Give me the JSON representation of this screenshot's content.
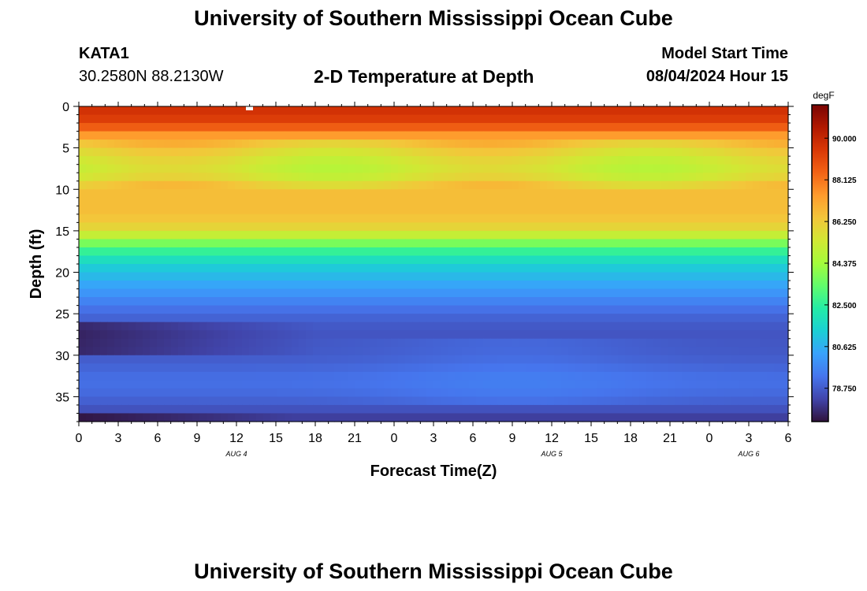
{
  "page": {
    "title": "University of Southern Mississippi Ocean Cube",
    "footer_title": "University of Southern Mississippi Ocean Cube",
    "station_id": "KATA1",
    "coordinates": "30.2580N  88.2130W",
    "plot_title": "2-D Temperature at Depth",
    "model_start_label": "Model Start Time",
    "model_start_value": "08/04/2024 Hour 15"
  },
  "chart_data": {
    "type": "heatmap",
    "title": "2-D Temperature at Depth",
    "xlabel": "Forecast Time(Z)",
    "ylabel": "Depth (ft)",
    "colorbar_label": "degF",
    "ylim": [
      0,
      38
    ],
    "y_ticks": [
      0,
      5,
      10,
      15,
      20,
      25,
      30,
      35
    ],
    "x_tick_labels": [
      "0",
      "3",
      "6",
      "9",
      "12",
      "15",
      "18",
      "21",
      "0",
      "3",
      "6",
      "9",
      "12",
      "15",
      "18",
      "21",
      "0",
      "3",
      "6"
    ],
    "date_labels": [
      {
        "label": "AUG 4",
        "at_tick": 4
      },
      {
        "label": "AUG 5",
        "at_tick": 12
      },
      {
        "label": "AUG 6",
        "at_tick": 17
      }
    ],
    "colorbar_ticks": [
      "90.000",
      "88.125",
      "86.250",
      "84.375",
      "82.500",
      "80.625",
      "78.750"
    ],
    "colorbar_range": [
      77.25,
      91.5
    ],
    "colors": {
      "scale": [
        "#30123b",
        "#4145ab",
        "#4675ed",
        "#39a2fc",
        "#1bcfd4",
        "#24eca6",
        "#61fc6c",
        "#a4fc3b",
        "#d1e834",
        "#f3c63a",
        "#fe9b2d",
        "#f36315",
        "#d93806",
        "#b11901",
        "#7a0403"
      ]
    },
    "depth_profile_degF": [
      [
        0,
        89.8
      ],
      [
        2,
        89.2
      ],
      [
        4,
        86.8
      ],
      [
        6,
        85.6
      ],
      [
        8,
        85.2
      ],
      [
        10,
        86.6
      ],
      [
        13,
        86.6
      ],
      [
        15,
        85.8
      ],
      [
        17,
        83.0
      ],
      [
        19,
        81.4
      ],
      [
        21,
        80.6
      ],
      [
        23,
        79.8
      ],
      [
        25,
        79.0
      ],
      [
        27,
        78.6
      ],
      [
        30,
        78.7
      ],
      [
        33,
        79.2
      ],
      [
        35,
        79.0
      ],
      [
        37,
        78.4
      ],
      [
        38,
        77.9
      ]
    ]
  }
}
